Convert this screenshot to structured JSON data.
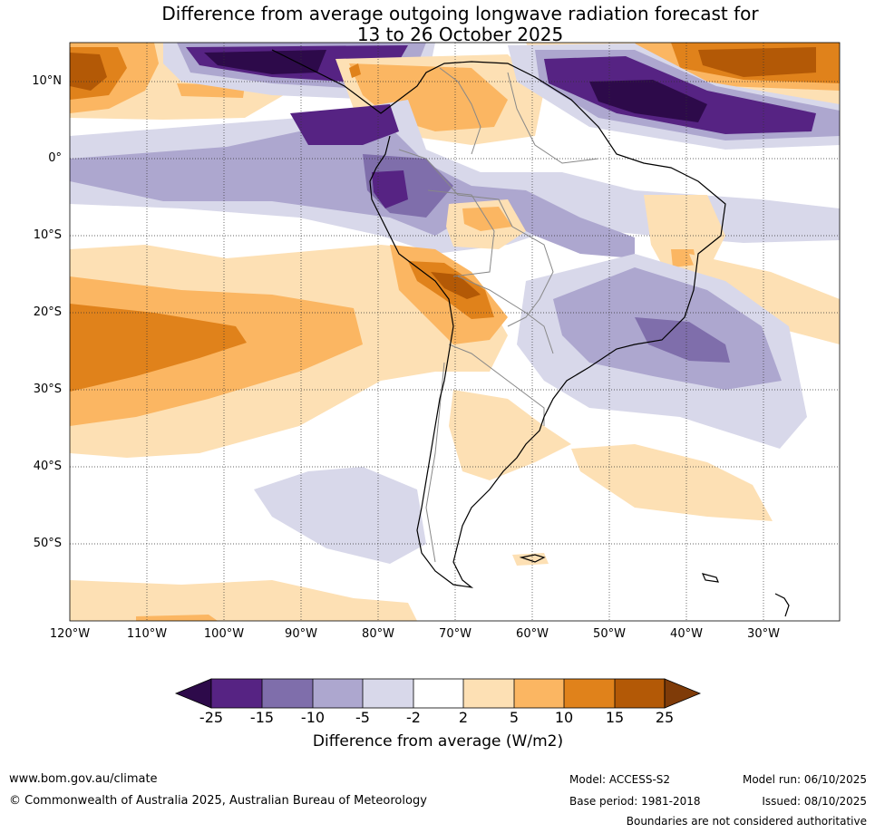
{
  "title": "Difference from average outgoing longwave radiation forecast for\n13 to 26 October 2025",
  "map": {
    "latitude_labels": [
      "10°N",
      "0°",
      "10°S",
      "20°S",
      "30°S",
      "40°S",
      "50°S"
    ],
    "longitude_labels": [
      "120°W",
      "110°W",
      "100°W",
      "90°W",
      "80°W",
      "70°W",
      "60°W",
      "50°W",
      "40°W",
      "30°W"
    ]
  },
  "colorbar": {
    "ticks": [
      "-25",
      "-15",
      "-10",
      "-5",
      "-2",
      "2",
      "5",
      "10",
      "15",
      "25"
    ],
    "colors": [
      "#2d0a4a",
      "#562383",
      "#7f6eab",
      "#ada7cf",
      "#d8d8ea",
      "#ffffff",
      "#fde0b4",
      "#fbb662",
      "#e0821b",
      "#b35906",
      "#7f3b08"
    ],
    "label": "Difference from average (W/m2)"
  },
  "footer": {
    "website": "www.bom.gov.au/climate",
    "copyright": "© Commonwealth of Australia 2025, Australian Bureau of Meteorology",
    "model": "Model: ACCESS-S2",
    "base_period": "Base period: 1981-2018",
    "model_run": "Model run: 06/10/2025",
    "issued": "Issued: 08/10/2025",
    "boundaries_note": "Boundaries are not considered authoritative"
  }
}
